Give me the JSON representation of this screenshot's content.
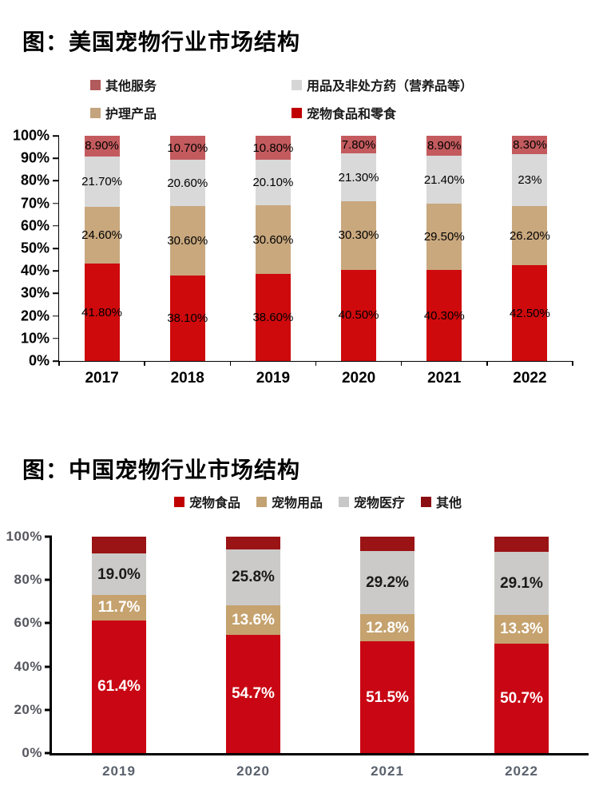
{
  "chart_data": [
    {
      "id": "us",
      "type": "bar",
      "stacked": true,
      "title": "图：美国宠物行业市场结构",
      "categories": [
        "2017",
        "2018",
        "2019",
        "2020",
        "2021",
        "2022"
      ],
      "series": [
        {
          "name": "宠物食品和零食",
          "color": "#CE0A0C",
          "label_color": "#000000",
          "values": [
            41.8,
            38.1,
            38.6,
            40.5,
            40.3,
            42.5
          ],
          "labels": [
            "41.80%",
            "38.10%",
            "38.60%",
            "40.50%",
            "40.30%",
            "42.50%"
          ]
        },
        {
          "name": "护理产品",
          "color": "#C9A87E",
          "label_color": "#000000",
          "values": [
            24.6,
            30.6,
            30.6,
            30.3,
            29.5,
            26.2
          ],
          "labels": [
            "24.60%",
            "30.60%",
            "30.60%",
            "30.30%",
            "29.50%",
            "26.20%"
          ]
        },
        {
          "name": "用品及非处方药（营养品等）",
          "color": "#D9D9D9",
          "label_color": "#000000",
          "values": [
            21.7,
            20.6,
            20.1,
            21.3,
            21.4,
            23.0
          ],
          "labels": [
            "21.70%",
            "20.60%",
            "20.10%",
            "21.30%",
            "21.40%",
            "23%"
          ]
        },
        {
          "name": "其他服务",
          "color": "#C35B5E",
          "label_color": "#000000",
          "values": [
            8.9,
            10.7,
            10.8,
            7.8,
            8.9,
            8.3
          ],
          "labels": [
            "8.90%",
            "10.70%",
            "10.80%",
            "7.80%",
            "8.90%",
            "8.30%"
          ]
        }
      ],
      "legend": [
        {
          "label": "其他服务",
          "color": "#B25A5C"
        },
        {
          "label": "用品及非处方药（营养品等）",
          "color": "#D6D6D6"
        },
        {
          "label": "护理产品",
          "color": "#C4A47E"
        },
        {
          "label": "宠物食品和零食",
          "color": "#C00000"
        }
      ],
      "y_ticks": [
        "0%",
        "10%",
        "20%",
        "30%",
        "40%",
        "50%",
        "60%",
        "70%",
        "80%",
        "90%",
        "100%"
      ],
      "ylim": [
        0,
        100
      ],
      "legend_position": "top",
      "grid": false
    },
    {
      "id": "cn",
      "type": "bar",
      "stacked": true,
      "title": "图：中国宠物行业市场结构",
      "categories": [
        "2019",
        "2020",
        "2021",
        "2022"
      ],
      "series": [
        {
          "name": "宠物食品",
          "color": "#C90613",
          "label_color": "#FFFFFF",
          "values": [
            61.4,
            54.7,
            51.5,
            50.7
          ],
          "labels": [
            "61.4%",
            "54.7%",
            "51.5%",
            "50.7%"
          ]
        },
        {
          "name": "宠物用品",
          "color": "#C5A26E",
          "label_color": "#FFFFFF",
          "values": [
            11.7,
            13.6,
            12.8,
            13.3
          ],
          "labels": [
            "11.7%",
            "13.6%",
            "12.8%",
            "13.3%"
          ]
        },
        {
          "name": "宠物医疗",
          "color": "#CBCAC8",
          "label_color": "#1A1A1A",
          "values": [
            19.0,
            25.8,
            29.2,
            29.1
          ],
          "labels": [
            "19.0%",
            "25.8%",
            "29.2%",
            "29.1%"
          ]
        },
        {
          "name": "其他",
          "color": "#9A1315",
          "label_color": "#FFFFFF",
          "values": [
            7.9,
            5.9,
            6.5,
            6.9
          ],
          "labels": [
            "",
            "",
            "",
            ""
          ]
        }
      ],
      "legend": [
        {
          "label": "宠物食品",
          "color": "#C00000"
        },
        {
          "label": "宠物用品",
          "color": "#C3A273"
        },
        {
          "label": "宠物医疗",
          "color": "#C8C8C8"
        },
        {
          "label": "其他",
          "color": "#8B0F12"
        }
      ],
      "y_ticks": [
        "0%",
        "20%",
        "40%",
        "60%",
        "80%",
        "100%"
      ],
      "ylim": [
        0,
        100
      ],
      "legend_position": "top",
      "grid": false
    }
  ]
}
